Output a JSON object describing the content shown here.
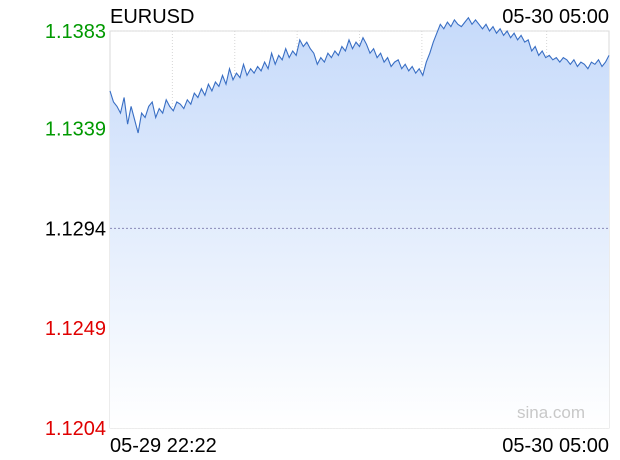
{
  "chart_data": {
    "type": "area",
    "title": "EURUSD",
    "timestamp": "05-30 05:00",
    "watermark": "sina.com",
    "reference_value": 1.1294,
    "ylim": [
      1.1204,
      1.1383
    ],
    "y_ticks": [
      {
        "label": "1.1383",
        "value": 1.1383,
        "color": "#009900"
      },
      {
        "label": "1.1339",
        "value": 1.1339,
        "color": "#009900"
      },
      {
        "label": "1.1294",
        "value": 1.1294,
        "color": "#000000"
      },
      {
        "label": "1.1249",
        "value": 1.1249,
        "color": "#e00000"
      },
      {
        "label": "1.1204",
        "value": 1.1204,
        "color": "#e00000"
      }
    ],
    "x_labels": {
      "start": "05-29 22:22",
      "end": "05-30 05:00"
    },
    "grid": true,
    "line_color": "#3a6fc4",
    "fill_color": "#cfe0fb",
    "series": [
      {
        "values": [
          1.1356,
          1.1351,
          1.1349,
          1.1346,
          1.1353,
          1.1341,
          1.1349,
          1.1343,
          1.1337,
          1.1346,
          1.1344,
          1.1349,
          1.1351,
          1.1344,
          1.1348,
          1.1346,
          1.1352,
          1.1349,
          1.1347,
          1.1351,
          1.135,
          1.1348,
          1.1352,
          1.135,
          1.1355,
          1.1353,
          1.1357,
          1.1354,
          1.1359,
          1.1356,
          1.136,
          1.1358,
          1.1363,
          1.1359,
          1.1366,
          1.1361,
          1.1364,
          1.1362,
          1.1368,
          1.1363,
          1.1366,
          1.1364,
          1.1367,
          1.1365,
          1.1369,
          1.1366,
          1.1373,
          1.1368,
          1.1372,
          1.137,
          1.1375,
          1.1371,
          1.1374,
          1.1372,
          1.1379,
          1.1376,
          1.1378,
          1.1375,
          1.1373,
          1.1368,
          1.1371,
          1.1369,
          1.1373,
          1.1371,
          1.1374,
          1.1372,
          1.1376,
          1.1374,
          1.1379,
          1.1375,
          1.1378,
          1.1376,
          1.138,
          1.1377,
          1.1373,
          1.1375,
          1.1371,
          1.1373,
          1.1369,
          1.1371,
          1.1367,
          1.1369,
          1.137,
          1.1366,
          1.1368,
          1.1365,
          1.1367,
          1.1364,
          1.1366,
          1.1363,
          1.1369,
          1.1373,
          1.1378,
          1.1382,
          1.1386,
          1.1384,
          1.1387,
          1.1385,
          1.1388,
          1.1386,
          1.1385,
          1.1387,
          1.1389,
          1.1386,
          1.1388,
          1.1386,
          1.1384,
          1.1386,
          1.1383,
          1.1385,
          1.1382,
          1.1384,
          1.1381,
          1.1383,
          1.138,
          1.1382,
          1.1379,
          1.1381,
          1.1378,
          1.1379,
          1.1374,
          1.1376,
          1.1372,
          1.1374,
          1.1371,
          1.1372,
          1.137,
          1.1371,
          1.1369,
          1.1371,
          1.137,
          1.1368,
          1.137,
          1.1367,
          1.1369,
          1.1368,
          1.1366,
          1.1369,
          1.1368,
          1.137,
          1.1367,
          1.1369,
          1.1372
        ]
      }
    ]
  }
}
